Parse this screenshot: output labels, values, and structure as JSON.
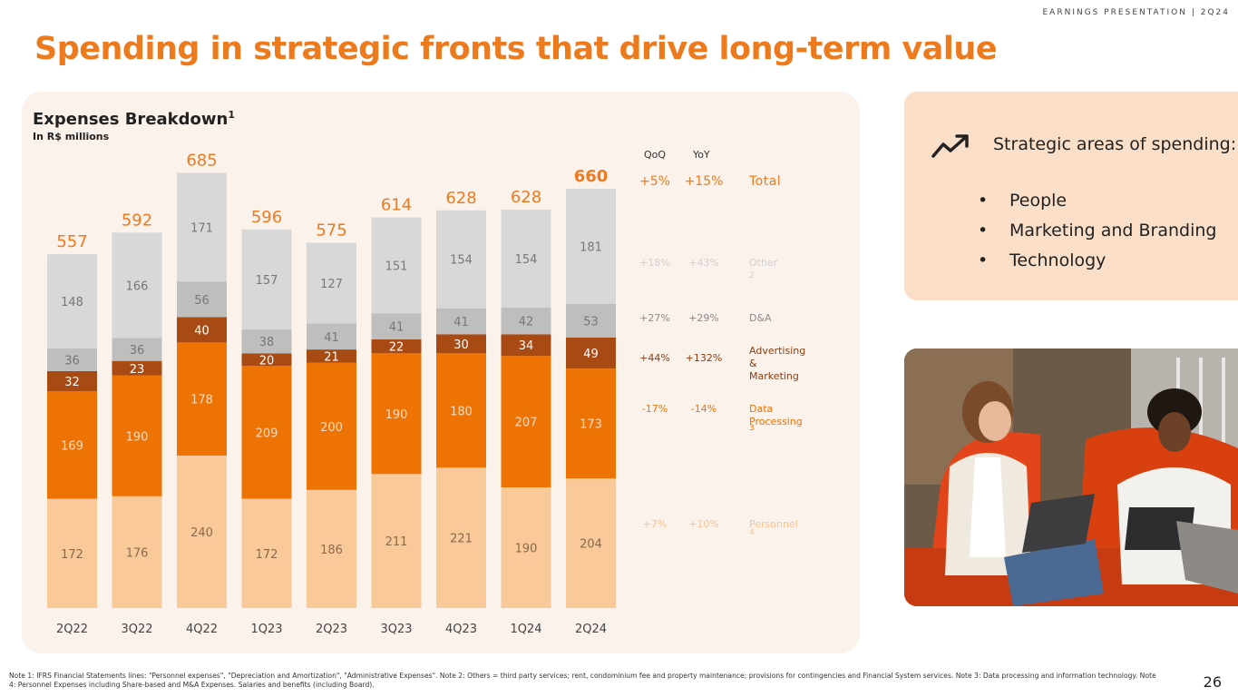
{
  "header": {
    "tag": "EARNINGS PRESENTATION | 2Q24"
  },
  "title": {
    "bold": "Spending in strategic fronts",
    "regular": " that drive long-term value"
  },
  "chart_data": {
    "type": "bar",
    "stacked": true,
    "title": "Expenses Breakdown",
    "title_note": "1",
    "subtitle": "In R$ millions",
    "categories": [
      "2Q22",
      "3Q22",
      "4Q22",
      "1Q23",
      "2Q23",
      "3Q23",
      "4Q23",
      "1Q24",
      "2Q24"
    ],
    "totals": [
      557,
      592,
      685,
      596,
      575,
      614,
      628,
      628,
      660
    ],
    "series": [
      {
        "name": "Personnel",
        "color": "#f9c99a",
        "values": [
          172,
          176,
          240,
          172,
          186,
          211,
          221,
          190,
          204
        ]
      },
      {
        "name": "Data Processing",
        "color": "#ee7305",
        "values": [
          169,
          190,
          178,
          209,
          200,
          190,
          180,
          207,
          173
        ]
      },
      {
        "name": "Advertising & Marketing",
        "color": "#a84a14",
        "values": [
          32,
          23,
          40,
          20,
          21,
          22,
          30,
          34,
          49
        ]
      },
      {
        "name": "D&A",
        "color": "#bebebe",
        "values": [
          36,
          36,
          56,
          38,
          41,
          41,
          41,
          42,
          53
        ]
      },
      {
        "name": "Other",
        "color": "#d8d8d8",
        "values": [
          148,
          166,
          171,
          157,
          127,
          151,
          154,
          154,
          181
        ]
      }
    ],
    "ylim": [
      0,
      700
    ],
    "highlight_category": "2Q24"
  },
  "table": {
    "qoq_header": "QoQ",
    "yoy_header": "YoY",
    "rows": [
      {
        "key": "total",
        "qoq": "+5%",
        "yoy": "+15%",
        "label": "Total",
        "note": ""
      },
      {
        "key": "other",
        "qoq": "+18%",
        "yoy": "+43%",
        "label": "Other",
        "note": "2"
      },
      {
        "key": "da",
        "qoq": "+27%",
        "yoy": "+29%",
        "label": "D&A",
        "note": ""
      },
      {
        "key": "adv",
        "qoq": "+44%",
        "yoy": "+132%",
        "label": "Advertising",
        "label2": "& Marketing",
        "note": ""
      },
      {
        "key": "data",
        "qoq": "-17%",
        "yoy": "-14%",
        "label": "Data Processing",
        "note": "3"
      },
      {
        "key": "personnel",
        "qoq": "+7%",
        "yoy": "+10%",
        "label": "Personnel",
        "note": "4"
      }
    ]
  },
  "strategy": {
    "title": "Strategic areas of spending:",
    "items": [
      "People",
      "Marketing and Branding",
      "Technology"
    ],
    "bullet": "•"
  },
  "colors": {
    "accent": "#ee7a1e",
    "panel": "#fbf2eb",
    "card": "#fbdfc9"
  },
  "footnote": "Note 1: IFRS Financial Statements lines: \"Personnel expenses\", \"Depreciation and Amortization\", \"Administrative Expenses\". Note 2: Others = third party services; rent, condominium fee and property maintenance; provisions for contingencies and Financial System services. Note 3: Data processing and information technology. Note 4: Personnel Expenses including Share-based and M&A Expenses. Salaries and benefits (including Board).",
  "page_number": "26"
}
